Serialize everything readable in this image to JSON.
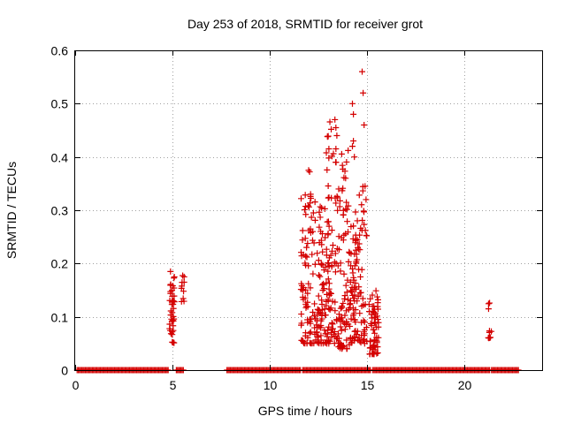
{
  "chart_data": {
    "type": "scatter",
    "title": "Day 253 of 2018, SRMTID for receiver grot",
    "xlabel": "GPS time / hours",
    "ylabel": "SRMTID / TECUs",
    "xlim": [
      0,
      24
    ],
    "ylim": [
      0,
      0.6
    ],
    "x_ticks": [
      0,
      5,
      10,
      15,
      20
    ],
    "x_tick_labels": [
      "0",
      "5",
      "10",
      "15",
      "20"
    ],
    "y_ticks": [
      0,
      0.1,
      0.2,
      0.3,
      0.4,
      0.5,
      0.6
    ],
    "y_tick_labels": [
      "0",
      "0.1",
      "0.2",
      "0.3",
      "0.4",
      "0.5",
      "0.6"
    ],
    "grid": true,
    "marker": "plus",
    "color": "#d40000",
    "zero_segments": [
      [
        0.1,
        4.8
      ],
      [
        5.2,
        5.6
      ],
      [
        7.8,
        11.6
      ],
      [
        11.7,
        15.2
      ],
      [
        15.3,
        21.3
      ],
      [
        21.4,
        22.8
      ]
    ],
    "clusters": [
      {
        "x": [
          4.85,
          5.1
        ],
        "y": [
          0.05,
          0.19
        ],
        "n": 40
      },
      {
        "x": [
          5.45,
          5.6
        ],
        "y": [
          0.12,
          0.18
        ],
        "n": 8
      },
      {
        "x": [
          11.6,
          12.2
        ],
        "y": [
          0.05,
          0.34
        ],
        "n": 70
      },
      {
        "x": [
          12.2,
          12.9
        ],
        "y": [
          0.05,
          0.32
        ],
        "n": 80
      },
      {
        "x": [
          12.9,
          13.5
        ],
        "y": [
          0.05,
          0.47
        ],
        "n": 90
      },
      {
        "x": [
          13.5,
          14.1
        ],
        "y": [
          0.04,
          0.42
        ],
        "n": 80
      },
      {
        "x": [
          14.1,
          14.6
        ],
        "y": [
          0.05,
          0.3
        ],
        "n": 70
      },
      {
        "x": [
          14.6,
          15.0
        ],
        "y": [
          0.05,
          0.35
        ],
        "n": 40
      },
      {
        "x": [
          15.1,
          15.6
        ],
        "y": [
          0.03,
          0.15
        ],
        "n": 60
      },
      {
        "x": [
          21.2,
          21.4
        ],
        "y": [
          0.06,
          0.13
        ],
        "n": 10
      }
    ],
    "points": [
      [
        4.9,
        0.185
      ],
      [
        5.6,
        0.175
      ],
      [
        5.6,
        0.165
      ],
      [
        12.0,
        0.375
      ],
      [
        12.05,
        0.372
      ],
      [
        13.35,
        0.47
      ],
      [
        13.4,
        0.455
      ],
      [
        13.45,
        0.44
      ],
      [
        14.25,
        0.5
      ],
      [
        14.3,
        0.48
      ],
      [
        14.75,
        0.56
      ],
      [
        14.8,
        0.52
      ],
      [
        14.85,
        0.46
      ],
      [
        14.9,
        0.345
      ],
      [
        14.95,
        0.32
      ],
      [
        14.25,
        0.42
      ],
      [
        14.3,
        0.43
      ],
      [
        14.35,
        0.4
      ],
      [
        13.9,
        0.36
      ],
      [
        12.1,
        0.33
      ]
    ]
  }
}
